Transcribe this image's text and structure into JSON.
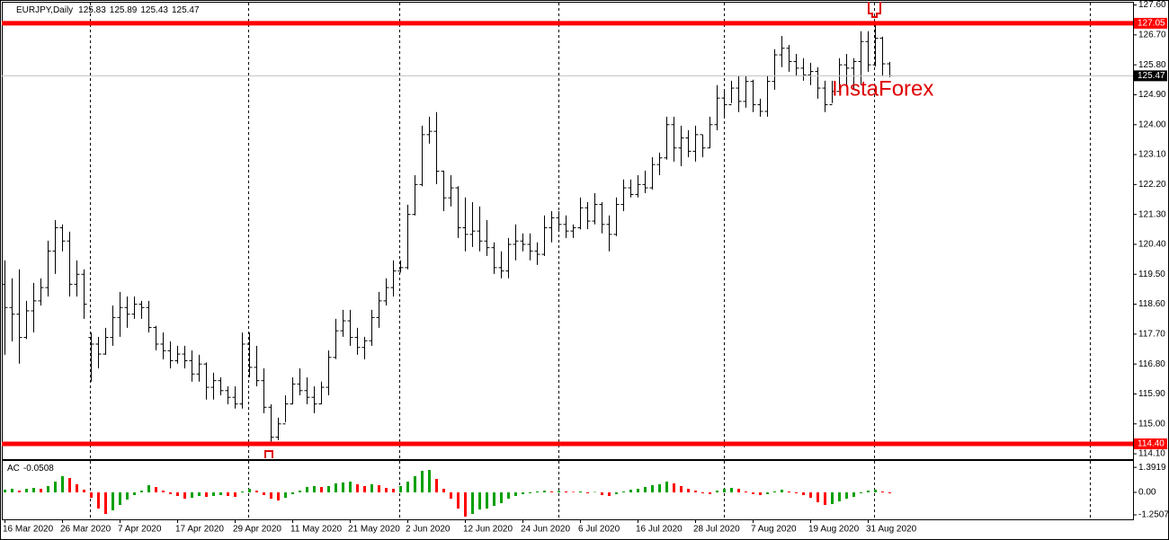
{
  "chart_data": {
    "type": "ohlc",
    "symbol": "EURJPY,Daily",
    "watermark": "InstaForex",
    "color": "#000000",
    "categories": [
      "16 Mar 2020",
      null,
      null,
      null,
      null,
      null,
      null,
      null,
      "26 Mar 2020",
      null,
      null,
      null,
      null,
      null,
      null,
      null,
      "7 Apr 2020",
      null,
      null,
      null,
      null,
      null,
      null,
      null,
      "17 Apr 2020",
      null,
      null,
      null,
      null,
      null,
      null,
      null,
      "29 Apr 2020",
      null,
      null,
      null,
      null,
      null,
      null,
      null,
      "11 May 2020",
      null,
      null,
      null,
      null,
      null,
      null,
      null,
      "21 May 2020",
      null,
      null,
      null,
      null,
      null,
      null,
      null,
      "2 Jun 2020",
      null,
      null,
      null,
      null,
      null,
      null,
      null,
      "12 Jun 2020",
      null,
      null,
      null,
      null,
      null,
      null,
      null,
      "24 Jun 2020",
      null,
      null,
      null,
      null,
      null,
      null,
      null,
      "6 Jul 2020",
      null,
      null,
      null,
      null,
      null,
      null,
      null,
      "16 Jul 2020",
      null,
      null,
      null,
      null,
      null,
      null,
      null,
      "28 Jul 2020",
      null,
      null,
      null,
      null,
      null,
      null,
      null,
      "7 Aug 2020",
      null,
      null,
      null,
      null,
      null,
      null,
      null,
      "19 Aug 2020",
      null,
      null,
      null,
      null,
      null,
      null,
      null,
      "31 Aug 2020",
      null,
      null,
      null
    ],
    "open": [
      119.2,
      118.5,
      118.3,
      117.6,
      118.4,
      118.7,
      119.1,
      120.2,
      120.9,
      120.5,
      119.2,
      119.5,
      117.6,
      117.4,
      117.1,
      117.6,
      118.2,
      118.5,
      118.3,
      118.6,
      118.5,
      117.9,
      117.4,
      117.2,
      116.9,
      117.1,
      116.9,
      116.5,
      116.8,
      116.1,
      116.3,
      116.0,
      115.8,
      115.6,
      117.4,
      116.7,
      116.3,
      115.5,
      114.6,
      115.0,
      115.6,
      116.2,
      116.0,
      115.8,
      115.6,
      116.1,
      117.0,
      117.8,
      118.1,
      117.6,
      117.3,
      117.5,
      118.2,
      118.7,
      119.1,
      119.6,
      119.7,
      121.3,
      122.2,
      123.7,
      123.8,
      122.6,
      121.8,
      122.1,
      120.9,
      120.7,
      120.8,
      120.5,
      120.3,
      119.7,
      119.6,
      120.4,
      120.5,
      120.4,
      120.2,
      120.1,
      120.9,
      121.2,
      121.0,
      120.8,
      120.9,
      121.5,
      121.1,
      121.6,
      121.0,
      120.7,
      121.6,
      122.1,
      121.9,
      122.2,
      122.1,
      122.8,
      123.0,
      124.0,
      123.3,
      123.6,
      123.2,
      123.7,
      123.3,
      124.0,
      124.8,
      124.6,
      125.1,
      124.7,
      125.3,
      124.6,
      124.4,
      125.3,
      126.1,
      126.3,
      125.9,
      125.7,
      125.5,
      125.6,
      125.1,
      124.6,
      125.0,
      125.8,
      125.7,
      125.9,
      126.5,
      125.8,
      126.6,
      125.83
    ],
    "high": [
      119.92,
      119.38,
      119.65,
      118.7,
      119.24,
      119.38,
      120.51,
      121.13,
      121.0,
      120.78,
      119.92,
      119.65,
      117.75,
      117.62,
      117.89,
      118.56,
      118.97,
      118.83,
      118.83,
      118.7,
      118.7,
      117.95,
      117.75,
      117.48,
      117.35,
      117.35,
      117.21,
      117.08,
      116.85,
      116.54,
      116.4,
      116.13,
      116.13,
      117.75,
      117.75,
      117.35,
      116.67,
      115.59,
      115.19,
      115.86,
      116.4,
      116.67,
      116.4,
      116.13,
      116.27,
      117.21,
      118.16,
      118.43,
      118.43,
      117.89,
      117.62,
      118.43,
      118.97,
      119.38,
      119.92,
      119.92,
      121.59,
      122.48,
      123.97,
      124.24,
      124.38,
      122.62,
      122.48,
      122.15,
      121.81,
      121.67,
      121.54,
      121.13,
      120.46,
      120.19,
      120.59,
      121.0,
      120.73,
      120.73,
      120.46,
      121.27,
      121.4,
      121.4,
      121.27,
      121.0,
      121.81,
      121.67,
      121.94,
      121.67,
      121.27,
      121.81,
      122.35,
      122.35,
      122.48,
      122.62,
      123.02,
      123.16,
      124.24,
      124.24,
      123.97,
      123.83,
      123.97,
      123.7,
      124.24,
      125.19,
      125.05,
      125.32,
      125.46,
      125.46,
      125.35,
      124.78,
      125.46,
      126.27,
      126.67,
      126.4,
      126.13,
      126.0,
      125.86,
      125.73,
      125.32,
      125.32,
      126.0,
      126.13,
      126.0,
      126.81,
      126.81,
      127.08,
      126.65,
      125.89
    ],
    "low": [
      117.08,
      117.48,
      116.81,
      117.55,
      117.75,
      118.56,
      118.83,
      119.51,
      120.19,
      118.83,
      118.83,
      118.16,
      116.27,
      116.67,
      117.08,
      117.35,
      117.62,
      117.89,
      118.16,
      118.16,
      117.75,
      117.21,
      116.94,
      116.67,
      116.81,
      116.67,
      116.27,
      116.27,
      115.73,
      115.73,
      115.86,
      115.59,
      115.46,
      115.46,
      116.4,
      116.13,
      115.32,
      114.38,
      114.51,
      115.05,
      115.59,
      115.86,
      115.59,
      115.32,
      115.59,
      115.86,
      116.95,
      117.62,
      117.35,
      117.08,
      116.94,
      117.35,
      117.89,
      118.56,
      118.83,
      119.55,
      119.65,
      121.27,
      122.15,
      123.43,
      122.21,
      121.4,
      121.54,
      120.59,
      120.19,
      120.32,
      120.19,
      120.05,
      119.51,
      119.38,
      119.38,
      119.92,
      120.19,
      119.92,
      119.78,
      120.05,
      120.46,
      120.86,
      120.59,
      120.59,
      120.85,
      120.86,
      121.0,
      120.73,
      120.19,
      120.65,
      121.4,
      121.81,
      121.81,
      121.94,
      122.05,
      122.48,
      122.95,
      122.89,
      122.75,
      123.02,
      122.89,
      123.02,
      123.29,
      123.83,
      124.24,
      124.65,
      124.38,
      124.51,
      124.38,
      124.24,
      124.24,
      125.05,
      125.73,
      125.59,
      125.46,
      125.32,
      125.19,
      124.78,
      124.38,
      124.65,
      125.05,
      125.19,
      125.05,
      125.19,
      125.59,
      125.75,
      125.46,
      125.43
    ],
    "close": [
      118.5,
      118.3,
      117.6,
      118.4,
      118.7,
      119.1,
      120.2,
      120.9,
      120.5,
      119.2,
      119.5,
      118.6,
      117.4,
      117.1,
      117.6,
      118.2,
      118.5,
      118.3,
      118.6,
      118.5,
      117.9,
      117.4,
      117.2,
      116.9,
      117.1,
      116.9,
      116.5,
      116.8,
      116.1,
      116.3,
      116.0,
      115.8,
      115.6,
      117.4,
      116.7,
      116.3,
      115.5,
      114.6,
      115.0,
      115.6,
      116.2,
      116.0,
      115.8,
      115.6,
      116.1,
      117.0,
      117.8,
      118.1,
      117.6,
      117.3,
      117.5,
      118.2,
      118.7,
      119.1,
      119.6,
      119.7,
      121.3,
      122.2,
      123.7,
      123.8,
      122.6,
      121.8,
      122.1,
      120.9,
      120.7,
      120.8,
      120.5,
      120.3,
      119.7,
      119.6,
      120.4,
      120.5,
      120.4,
      120.2,
      120.1,
      120.9,
      121.2,
      121.0,
      120.8,
      120.9,
      121.5,
      121.1,
      121.6,
      121.0,
      120.7,
      121.6,
      122.1,
      121.9,
      122.2,
      122.1,
      122.8,
      123.0,
      124.0,
      123.3,
      123.6,
      123.2,
      123.7,
      123.3,
      124.0,
      124.8,
      124.6,
      125.1,
      124.7,
      125.3,
      124.6,
      124.4,
      125.3,
      126.1,
      126.3,
      125.9,
      125.7,
      125.5,
      125.6,
      125.1,
      124.6,
      125.0,
      125.8,
      125.7,
      125.9,
      126.5,
      125.8,
      126.6,
      125.83,
      125.47
    ],
    "ylim": [
      113.94,
      127.75
    ],
    "yticks": [
      {
        "value": 127.6,
        "label": "127.60"
      },
      {
        "value": 126.7,
        "label": "126.70"
      },
      {
        "value": 125.8,
        "label": "125.80"
      },
      {
        "value": 124.9,
        "label": "124.90"
      },
      {
        "value": 124.0,
        "label": "124.00"
      },
      {
        "value": 123.1,
        "label": "123.10"
      },
      {
        "value": 122.2,
        "label": "122.20"
      },
      {
        "value": 121.3,
        "label": "121.30"
      },
      {
        "value": 120.4,
        "label": "120.40"
      },
      {
        "value": 119.5,
        "label": "119.50"
      },
      {
        "value": 118.6,
        "label": "118.60"
      },
      {
        "value": 117.7,
        "label": "117.70"
      },
      {
        "value": 116.8,
        "label": "116.80"
      },
      {
        "value": 115.9,
        "label": "115.90"
      },
      {
        "value": 115.0,
        "label": "115.00"
      },
      {
        "value": 114.1,
        "label": "114.10"
      }
    ],
    "levels": [
      127.05,
      {
        "value": 114.4,
        "label": "114.40"
      }
    ],
    "level_color": "#ff0000",
    "indicator": {
      "type": "histogram",
      "name": "AC",
      "up_color": "#00a000",
      "down_color": "#ff0000",
      "ylim": [
        -1.5,
        1.75
      ],
      "yticks": [
        1.3919,
        {
          "value": 0,
          "label": "0.00"
        },
        -1.2507
      ],
      "values": [
        0.15,
        0.2,
        0.1,
        0.2,
        0.25,
        0.2,
        0.35,
        0.6,
        0.9,
        0.8,
        0.45,
        0.15,
        -0.3,
        -0.9,
        -1.2,
        -1.0,
        -0.7,
        -0.4,
        -0.15,
        0.1,
        0.4,
        0.3,
        0.1,
        -0.1,
        -0.2,
        -0.35,
        -0.3,
        -0.2,
        -0.25,
        -0.2,
        -0.15,
        -0.2,
        -0.25,
        0.05,
        0.2,
        0.1,
        -0.15,
        -0.35,
        -0.45,
        -0.3,
        -0.1,
        0.1,
        0.3,
        0.35,
        0.3,
        0.35,
        0.5,
        0.55,
        0.6,
        0.45,
        0.35,
        0.45,
        0.4,
        0.25,
        0.2,
        0.35,
        0.6,
        0.9,
        1.2,
        1.25,
        0.75,
        0.2,
        -0.35,
        -0.9,
        -1.35,
        -1.2,
        -0.95,
        -0.9,
        -0.75,
        -0.6,
        -0.35,
        -0.2,
        -0.1,
        -0.05,
        0.05,
        0.1,
        0.05,
        0.08,
        0.05,
        0.03,
        0.05,
        -0.05,
        0.02,
        -0.15,
        -0.2,
        -0.1,
        0.05,
        0.15,
        0.2,
        0.3,
        0.4,
        0.45,
        0.6,
        0.5,
        0.35,
        0.2,
        0.1,
        -0.05,
        -0.1,
        0.1,
        0.2,
        0.25,
        0.2,
        0.05,
        -0.1,
        -0.15,
        -0.1,
        0.05,
        0.15,
        0.05,
        -0.05,
        -0.15,
        -0.3,
        -0.55,
        -0.7,
        -0.65,
        -0.5,
        -0.35,
        -0.25,
        -0.05,
        0.1,
        0.15,
        0.05,
        -0.0508
      ]
    }
  }
}
